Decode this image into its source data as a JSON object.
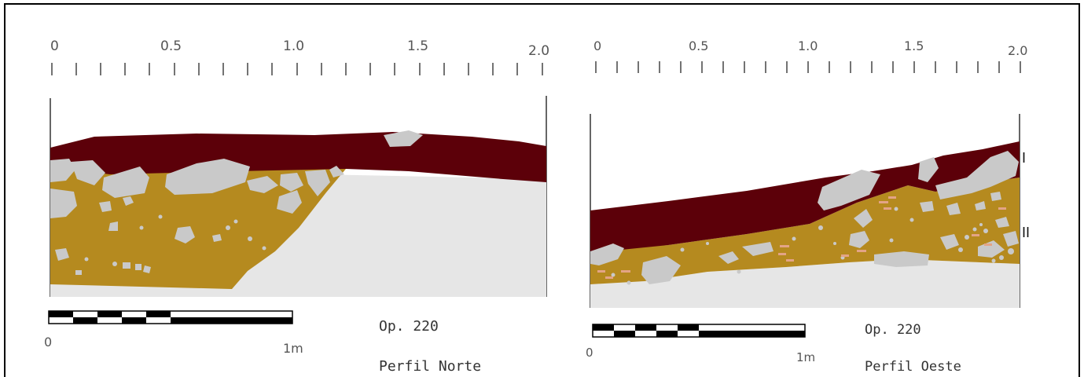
{
  "colors": {
    "layer_I": "#5c0009",
    "layer_II": "#b58a1f",
    "stone": "#c9c9c9",
    "subsoil": "#e6e6e6",
    "brick": "#e3a486",
    "frame": "#000000",
    "ruler": "#444444"
  },
  "north": {
    "ruler_labels": [
      "0",
      "0.5",
      "1.0",
      "1.5",
      "2.0"
    ],
    "scale_start": "0",
    "scale_end": "1m",
    "operation": "Op. 220",
    "profile": "Perfil Norte"
  },
  "west": {
    "ruler_labels": [
      "0",
      "0.5",
      "1.0",
      "1.5",
      "2.0"
    ],
    "scale_start": "0",
    "scale_end": "1m",
    "operation": "Op. 220",
    "profile": "Perfil Oeste",
    "layer_labels": [
      "I",
      "II"
    ]
  }
}
